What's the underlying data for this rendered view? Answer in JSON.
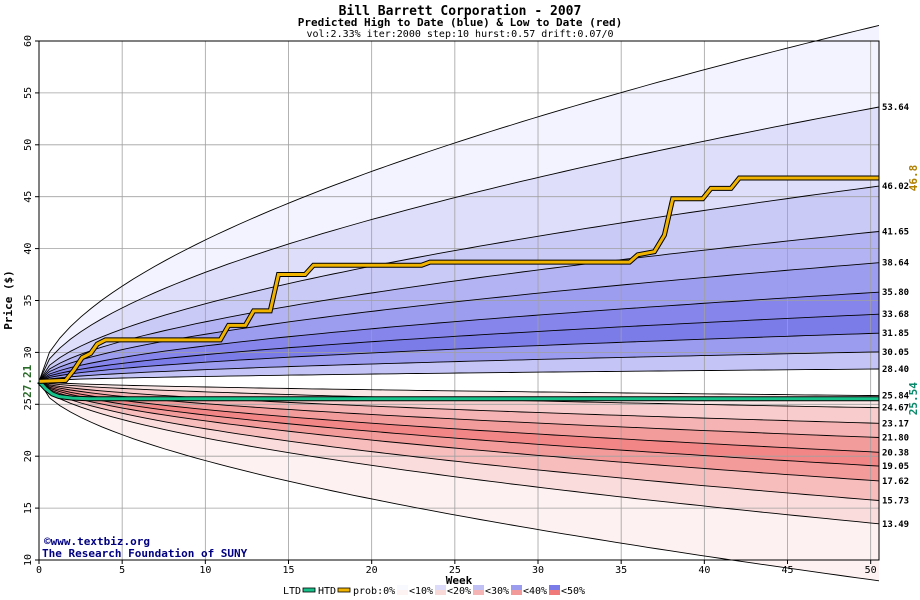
{
  "chart_data": {
    "type": "area",
    "title": "Bill Barrett Corporation - 2007",
    "subtitle": "Predicted High to Date (blue) &  Low to Date (red)",
    "params": "vol:2.33% iter:2000 step:10 hurst:0.57 drift:0.07/0",
    "xlabel": "Week",
    "ylabel": "Price ($)",
    "xlim": [
      0,
      50.5
    ],
    "ylim": [
      10,
      60
    ],
    "xticks": [
      0,
      5,
      10,
      15,
      20,
      25,
      30,
      35,
      40,
      45,
      50
    ],
    "yticks": [
      10,
      15,
      20,
      25,
      30,
      35,
      40,
      45,
      50,
      55,
      60
    ],
    "grid": true,
    "start_price": 27.21,
    "start_label": "27.21",
    "htd_final": 46.8,
    "htd_final_label": "46.8",
    "ltd_final": 25.54,
    "ltd_final_label": "25.54",
    "high_percentile_ends": [
      61.5,
      53.64,
      46.02,
      41.65,
      38.64,
      35.8,
      33.68,
      31.85,
      30.05,
      28.4
    ],
    "low_percentile_ends": [
      25.84,
      24.67,
      23.17,
      21.8,
      20.38,
      19.05,
      17.62,
      15.73,
      13.49,
      8.0
    ],
    "right_labels": [
      "53.64",
      "46.02",
      "41.65",
      "38.64",
      "35.80",
      "33.68",
      "31.85",
      "30.05",
      "28.40",
      "25.84",
      "24.67",
      "23.17",
      "21.80",
      "20.38",
      "19.05",
      "17.62",
      "15.73",
      "13.49"
    ],
    "htd_series": {
      "x": [
        0,
        1.6,
        2.1,
        2.6,
        3.1,
        3.5,
        4.0,
        10.9,
        11.4,
        12.4,
        12.9,
        13.9,
        14.4,
        16.0,
        16.5,
        23.0,
        23.5,
        35.5,
        36.0,
        37.0,
        37.6,
        38.1,
        38.6,
        39.9,
        40.4,
        41.6,
        42.1,
        50.5
      ],
      "y": [
        27.21,
        27.3,
        28.3,
        29.5,
        29.9,
        30.8,
        31.2,
        31.2,
        32.6,
        32.6,
        34.0,
        34.0,
        37.5,
        37.5,
        38.4,
        38.4,
        38.7,
        38.7,
        39.4,
        39.7,
        41.3,
        44.8,
        44.8,
        44.8,
        45.8,
        45.8,
        46.8,
        46.8
      ]
    },
    "ltd_series": {
      "x": [
        0,
        0.4,
        0.8,
        1.2,
        2.0,
        3.0,
        50.5
      ],
      "y": [
        27.21,
        26.5,
        26.0,
        25.75,
        25.6,
        25.54,
        25.54
      ]
    },
    "colors": {
      "blue_bands": [
        "#f3f3ff",
        "#dedefb",
        "#cacaf7",
        "#b3b3f3",
        "#9d9def",
        "#8585ec",
        "#7c7ce8",
        "#9b9bef",
        "#c4c4f6"
      ],
      "red_bands": [
        "#fbe6e6",
        "#f8cccc",
        "#f6b3b3",
        "#f39c9c",
        "#f28686",
        "#f39a9a",
        "#f7bcbc",
        "#fbdcdc",
        "#fdf1f1"
      ],
      "htd_line": "#f0b400",
      "ltd_line": "#18c08a",
      "htd_label": "#b08000",
      "ltd_label": "#0a8a6a",
      "start_label": "#2a6b2a",
      "credit": "#000080"
    },
    "credit_line1": "©www.textbiz.org",
    "credit_line2": "The Research Foundation of SUNY",
    "legend": {
      "ltd": "LTD",
      "htd": "HTD",
      "prob": "prob:0%",
      "items": [
        "<10%",
        "<20%",
        "<30%",
        "<40%",
        "<50%"
      ]
    }
  }
}
